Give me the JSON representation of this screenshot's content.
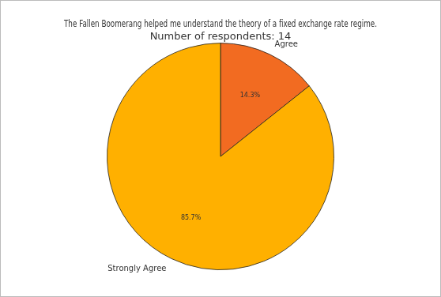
{
  "chart_data": {
    "type": "pie",
    "title": "The Fallen Boomerang helped me understand the theory of a fixed exchange rate regime.",
    "subtitle": "Number of respondents: 14",
    "categories": [
      "Agree",
      "Strongly Agree"
    ],
    "values": [
      14.3,
      85.7
    ],
    "value_labels": [
      "14.3%",
      "85.7%"
    ],
    "colors": [
      "#f26b21",
      "#ffb000"
    ],
    "data_labels": true,
    "legend": false
  }
}
